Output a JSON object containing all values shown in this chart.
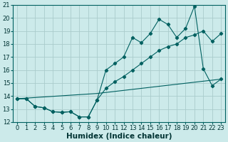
{
  "xlabel": "Humidex (Indice chaleur)",
  "xlim": [
    -0.5,
    23.5
  ],
  "ylim": [
    12,
    21
  ],
  "yticks": [
    12,
    13,
    14,
    15,
    16,
    17,
    18,
    19,
    20,
    21
  ],
  "xticks": [
    0,
    1,
    2,
    3,
    4,
    5,
    6,
    7,
    8,
    9,
    10,
    11,
    12,
    13,
    14,
    15,
    16,
    17,
    18,
    19,
    20,
    21,
    22,
    23
  ],
  "bg_color": "#cceaea",
  "grid_color": "#aacccc",
  "line_color": "#006060",
  "line1_x": [
    0,
    1,
    2,
    3,
    4,
    5,
    6,
    7,
    8,
    9,
    10,
    11,
    12,
    13,
    14,
    15,
    16,
    17,
    18,
    19,
    20,
    21,
    22,
    23
  ],
  "line1_y": [
    13.8,
    13.8,
    13.2,
    13.1,
    12.8,
    12.75,
    12.8,
    12.4,
    12.4,
    13.7,
    14.6,
    15.1,
    15.5,
    16.0,
    16.5,
    17.0,
    17.5,
    17.8,
    18.0,
    18.5,
    18.7,
    19.0,
    18.2,
    18.8
  ],
  "line2_x": [
    0,
    1,
    2,
    3,
    4,
    5,
    6,
    7,
    8,
    9,
    10,
    11,
    12,
    13,
    14,
    15,
    16,
    17,
    18,
    19,
    20,
    21,
    22,
    23
  ],
  "line2_y": [
    13.8,
    13.8,
    13.2,
    13.1,
    12.8,
    12.75,
    12.8,
    12.4,
    12.4,
    13.7,
    16.0,
    16.5,
    17.0,
    18.5,
    18.1,
    18.8,
    19.9,
    19.5,
    18.5,
    19.2,
    20.9,
    16.1,
    14.8,
    15.3
  ],
  "line3_x": [
    0,
    9,
    23
  ],
  "line3_y": [
    13.8,
    14.2,
    15.3
  ],
  "tick_fontsize": 6,
  "label_fontsize": 7.5
}
